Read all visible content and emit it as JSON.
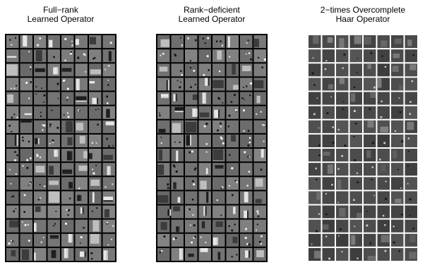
{
  "figure": {
    "panels": [
      {
        "title_line1": "Full−rank",
        "title_line2": "Learned Operator",
        "grid": {
          "cols": 8,
          "rows": 16
        },
        "separator_color": "#000000",
        "background_color": "#808080"
      },
      {
        "title_line1": "Rank−deficient",
        "title_line2": "Learned Operator",
        "grid": {
          "cols": 8,
          "rows": 16
        },
        "separator_color": "#000000",
        "background_color": "#808080"
      },
      {
        "title_line1": "2−times Overcomplete",
        "title_line2": "Haar Operator",
        "grid": {
          "cols": 8,
          "rows": 16
        },
        "separator_color": "#ffffff",
        "background_color": "#444444"
      }
    ]
  }
}
